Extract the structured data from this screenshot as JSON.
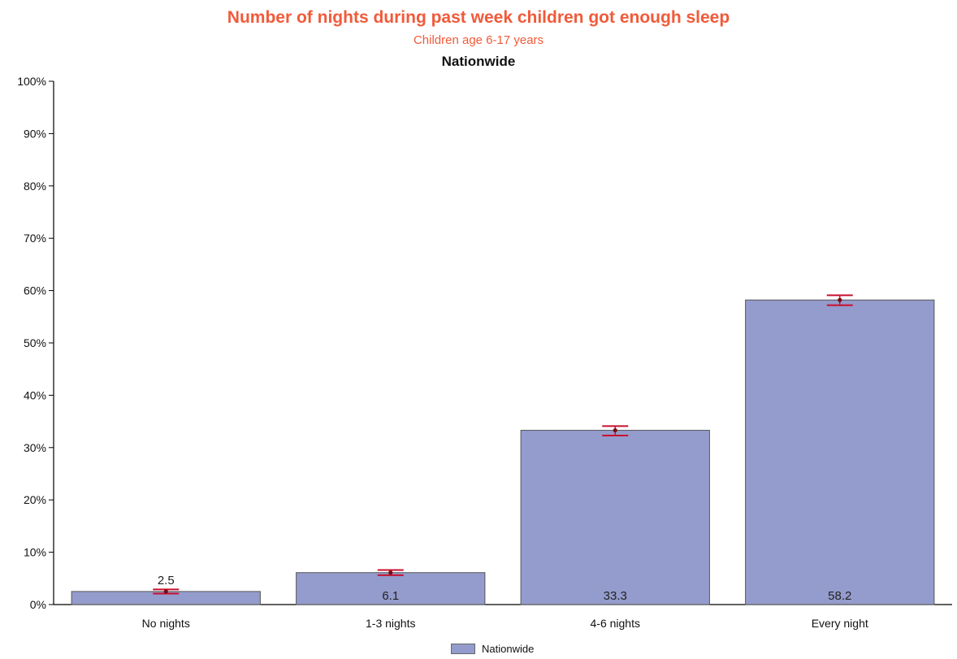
{
  "chart_data": {
    "type": "bar",
    "title": "Number of nights during past week children got enough sleep",
    "subtitle": "Children age 6-17 years",
    "subtitle2": "Nationwide",
    "categories": [
      "No nights",
      "1-3 nights",
      "4-6 nights",
      "Every night"
    ],
    "series": [
      {
        "name": "Nationwide",
        "values": [
          2.5,
          6.1,
          33.3,
          58.2
        ],
        "ci_low": [
          2.1,
          5.6,
          32.3,
          57.2
        ],
        "ci_high": [
          2.9,
          6.6,
          34.1,
          59.1
        ],
        "labels": [
          "2.5",
          "6.1",
          "33.3",
          "58.2"
        ]
      }
    ],
    "yticks": [
      "0%",
      "10%",
      "20%",
      "30%",
      "40%",
      "50%",
      "60%",
      "70%",
      "80%",
      "90%",
      "100%"
    ],
    "ylim": [
      0,
      100
    ],
    "legend": "bottom-center",
    "bar_color": "#949ccd",
    "error_bar_color": "#c8102e",
    "title_color": "#f15a3a"
  }
}
